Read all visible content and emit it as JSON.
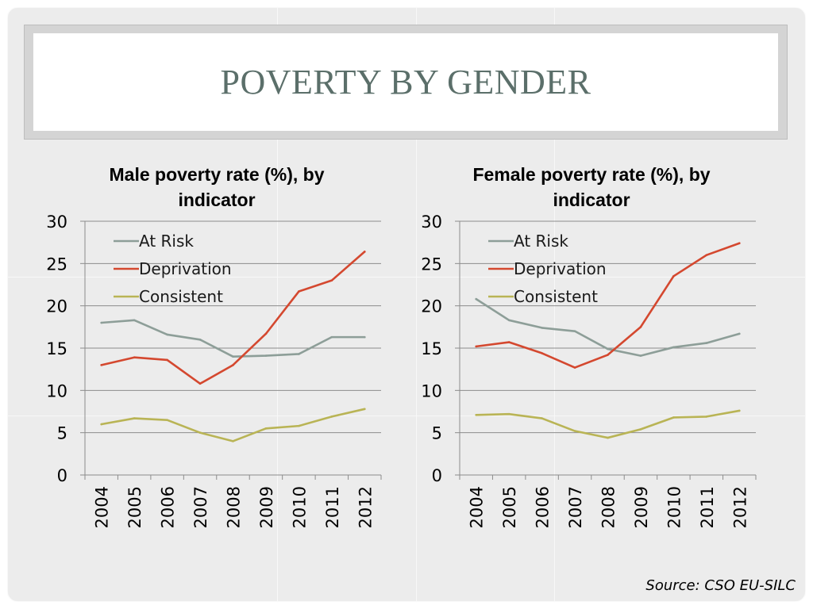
{
  "slide": {
    "title": "POVERTY BY GENDER",
    "source": "Source: CSO EU-SILC"
  },
  "colors": {
    "at_risk": "#8d9e98",
    "deprivation": "#d4482f",
    "consistent": "#b9b455",
    "gridline": "#8c8c8c",
    "axis": "#8c8c8c"
  },
  "chart_data": [
    {
      "type": "line",
      "title": "Male poverty rate (%), by indicator",
      "title_lines": [
        "Male poverty rate (%), by",
        "indicator"
      ],
      "categories": [
        "2004",
        "2005",
        "2006",
        "2007",
        "2008",
        "2009",
        "2010",
        "2011",
        "2012"
      ],
      "series": [
        {
          "name": "At Risk",
          "color_key": "at_risk",
          "values": [
            18.0,
            18.3,
            16.6,
            16.0,
            14.0,
            14.1,
            14.3,
            16.3,
            16.3
          ]
        },
        {
          "name": "Deprivation",
          "color_key": "deprivation",
          "values": [
            13.0,
            13.9,
            13.6,
            10.8,
            13.0,
            16.7,
            21.7,
            23.0,
            26.4
          ]
        },
        {
          "name": "Consistent",
          "color_key": "consistent",
          "values": [
            6.0,
            6.7,
            6.5,
            5.0,
            4.0,
            5.5,
            5.8,
            6.9,
            7.8
          ]
        }
      ],
      "yticks": [
        "0",
        "5",
        "10",
        "15",
        "20",
        "25",
        "30"
      ],
      "ylim": [
        0,
        30
      ],
      "xlabel": "",
      "ylabel": "",
      "legend": "top-left"
    },
    {
      "type": "line",
      "title": "Female poverty rate (%), by indicator",
      "title_lines": [
        "Female poverty rate (%), by",
        "indicator"
      ],
      "categories": [
        "2004",
        "2005",
        "2006",
        "2007",
        "2008",
        "2009",
        "2010",
        "2011",
        "2012"
      ],
      "series": [
        {
          "name": "At Risk",
          "color_key": "at_risk",
          "values": [
            20.8,
            18.3,
            17.4,
            17.0,
            14.9,
            14.1,
            15.1,
            15.6,
            16.7
          ]
        },
        {
          "name": "Deprivation",
          "color_key": "deprivation",
          "values": [
            15.2,
            15.7,
            14.4,
            12.7,
            14.2,
            17.5,
            23.5,
            26.0,
            27.4
          ]
        },
        {
          "name": "Consistent",
          "color_key": "consistent",
          "values": [
            7.1,
            7.2,
            6.7,
            5.2,
            4.4,
            5.4,
            6.8,
            6.9,
            7.6
          ]
        }
      ],
      "yticks": [
        "0",
        "5",
        "10",
        "15",
        "20",
        "25",
        "30"
      ],
      "ylim": [
        0,
        30
      ],
      "xlabel": "",
      "ylabel": "",
      "legend": "top-left"
    }
  ]
}
